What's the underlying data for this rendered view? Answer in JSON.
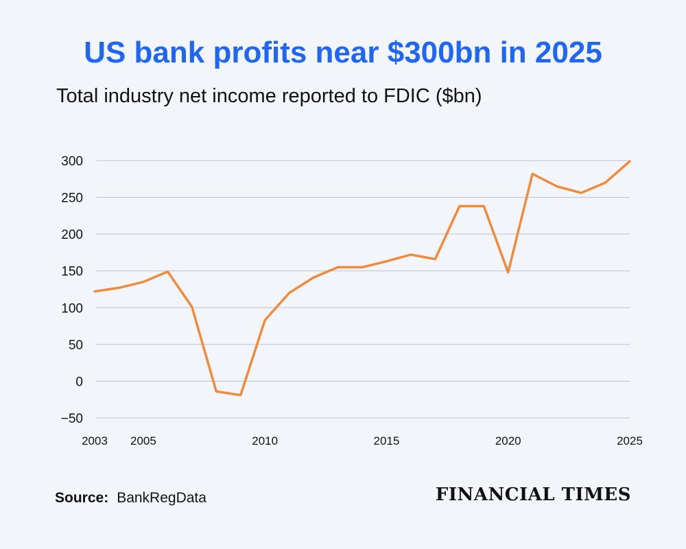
{
  "colors": {
    "title": "#1f66f2",
    "line": "#f28a3c",
    "grid": "#b8c0d0",
    "text": "#111111",
    "background": "#f2f6fb"
  },
  "chart_data": {
    "type": "line",
    "title": "US bank profits near $300bn in 2025",
    "subtitle": "Total industry net income reported to FDIC ($bn)",
    "xlabel": "",
    "ylabel": "",
    "xlim": [
      2003,
      2025
    ],
    "ylim": [
      -50,
      300
    ],
    "yticks": [
      300,
      250,
      200,
      150,
      100,
      50,
      0,
      -50
    ],
    "ytick_labels": [
      "300",
      "250",
      "200",
      "150",
      "100",
      "50",
      "0",
      "−50"
    ],
    "xticks": [
      2003,
      2005,
      2010,
      2015,
      2020,
      2025
    ],
    "xtick_labels": [
      "2003",
      "2005",
      "2010",
      "2015",
      "2020",
      "2025"
    ],
    "grid": true,
    "series": [
      {
        "name": "Net income",
        "x": [
          2003,
          2004,
          2005,
          2006,
          2007,
          2008,
          2009,
          2010,
          2011,
          2012,
          2013,
          2014,
          2015,
          2016,
          2017,
          2018,
          2019,
          2020,
          2021,
          2022,
          2023,
          2024,
          2025
        ],
        "values": [
          122,
          127,
          135,
          149,
          101,
          -14,
          -19,
          83,
          120,
          141,
          155,
          155,
          163,
          172,
          166,
          238,
          238,
          148,
          282,
          265,
          256,
          270,
          299
        ]
      }
    ]
  },
  "footer": {
    "source_label": "Source:",
    "source_value": "BankRegData",
    "brand": "FINANCIAL TIMES"
  }
}
